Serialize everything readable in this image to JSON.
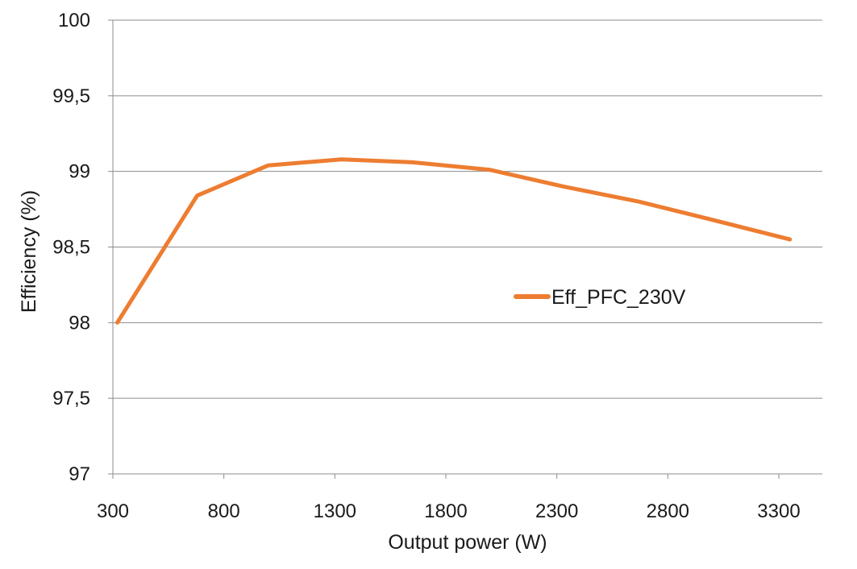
{
  "chart_data": {
    "type": "line",
    "xlabel": "Output power (W)",
    "ylabel": "Efficiency (%)",
    "xlim": [
      300,
      3500
    ],
    "ylim": [
      97,
      100
    ],
    "x_ticks": [
      300,
      800,
      1300,
      1800,
      2300,
      2800,
      3300
    ],
    "x_tick_labels": [
      "300",
      "800",
      "1300",
      "1800",
      "2300",
      "2800",
      "3300"
    ],
    "y_ticks": [
      97,
      97.5,
      98,
      98.5,
      99,
      99.5,
      100
    ],
    "y_tick_labels": [
      "97",
      "97,5",
      "98",
      "98,5",
      "99",
      "99,5",
      "100"
    ],
    "grid": "horizontal",
    "legend_position": "center-right",
    "series": [
      {
        "name": "Eff_PFC_230V",
        "color": "#ED7D31",
        "x": [
          320,
          680,
          1000,
          1330,
          1650,
          2000,
          2330,
          2670,
          3000,
          3350
        ],
        "y": [
          98.0,
          98.84,
          99.04,
          99.08,
          99.06,
          99.01,
          98.9,
          98.8,
          98.68,
          98.55
        ]
      }
    ]
  }
}
